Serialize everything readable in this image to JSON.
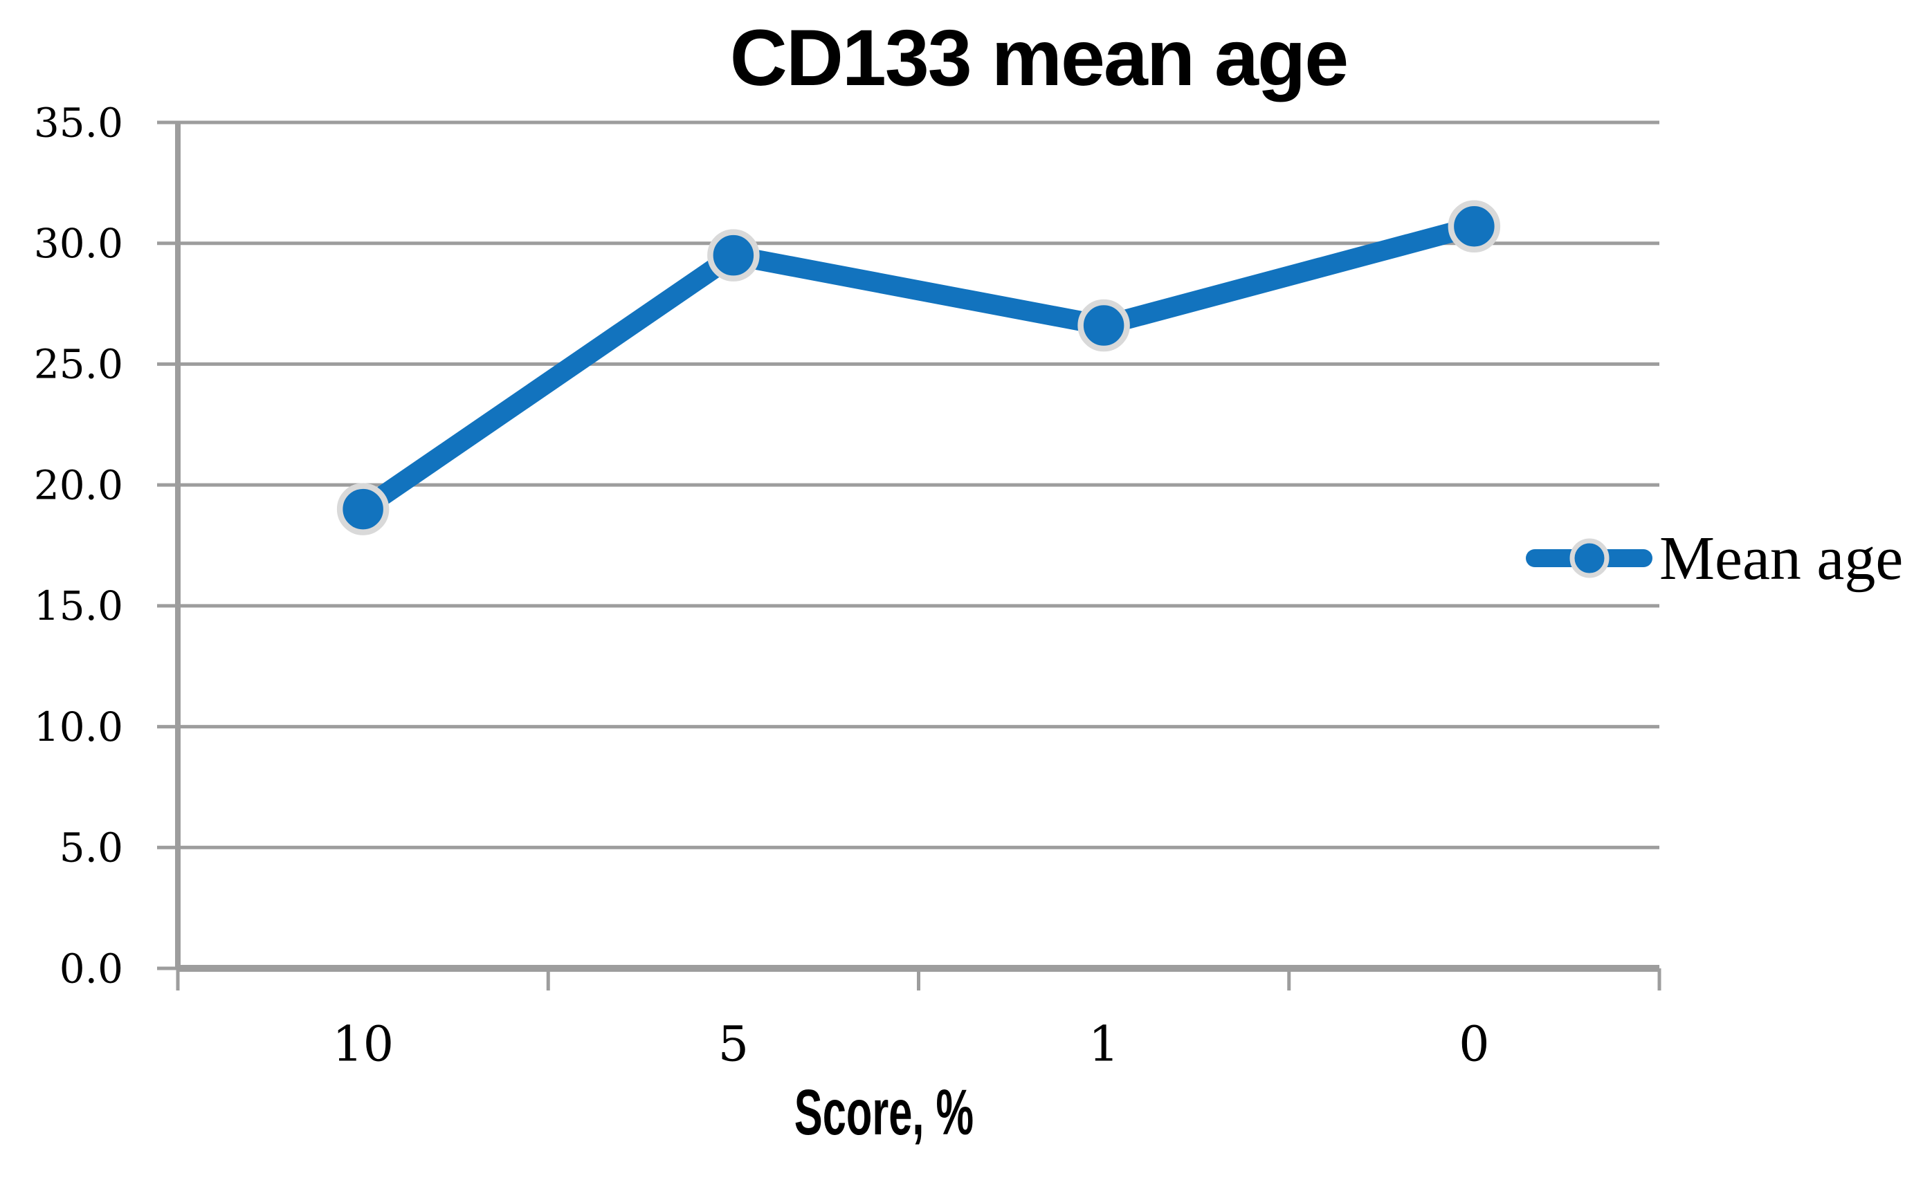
{
  "chart_data": {
    "type": "line",
    "title": "CD133 mean age",
    "xlabel": "Score, %",
    "ylabel": "",
    "categories": [
      "10",
      "5",
      "1",
      "0"
    ],
    "series": [
      {
        "name": "Mean age",
        "values": [
          19.0,
          29.5,
          26.6,
          30.7
        ]
      }
    ],
    "ylim": [
      0,
      35
    ],
    "ytick_step": 5,
    "yticks": [
      "0.0",
      "5.0",
      "10.0",
      "15.0",
      "20.0",
      "25.0",
      "30.0",
      "35.0"
    ],
    "grid": "horizontal",
    "legend_position": "right-middle",
    "colors": {
      "line": "#1273BE",
      "marker_fill": "#1273BE",
      "marker_ring": "#D9D9D9",
      "grid": "#9D9D9D",
      "axis": "#9D9D9D",
      "text": "#000000"
    }
  }
}
